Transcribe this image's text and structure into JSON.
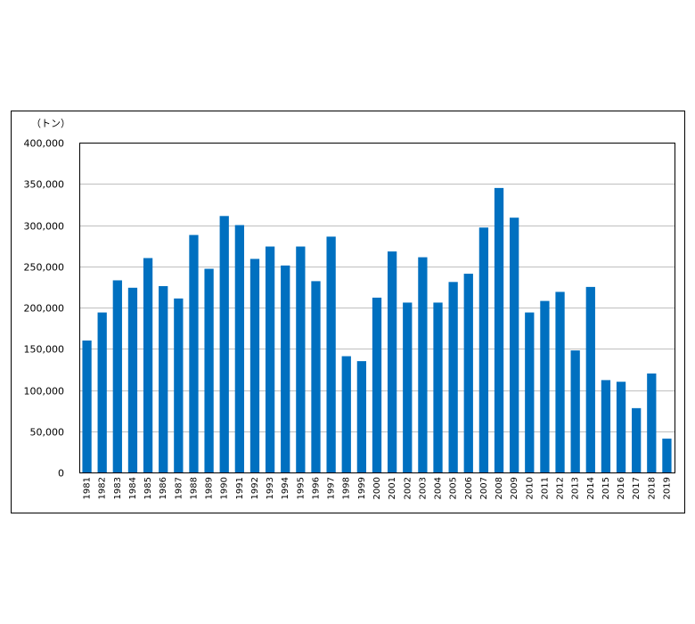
{
  "chart_data": {
    "type": "bar",
    "unit_label": "（トン）",
    "categories": [
      "1981",
      "1982",
      "1983",
      "1984",
      "1985",
      "1986",
      "1987",
      "1988",
      "1989",
      "1990",
      "1991",
      "1992",
      "1993",
      "1994",
      "1995",
      "1996",
      "1997",
      "1998",
      "1999",
      "2000",
      "2001",
      "2002",
      "2003",
      "2004",
      "2005",
      "2006",
      "2007",
      "2008",
      "2009",
      "2010",
      "2011",
      "2012",
      "2013",
      "2014",
      "2015",
      "2016",
      "2017",
      "2018",
      "2019"
    ],
    "values": [
      160000,
      194000,
      233000,
      224000,
      260000,
      226000,
      211000,
      288000,
      247000,
      311000,
      300000,
      259000,
      274000,
      251000,
      274000,
      232000,
      286000,
      141000,
      135000,
      212000,
      268000,
      206000,
      261000,
      206000,
      231000,
      241000,
      297000,
      345000,
      309000,
      194000,
      208000,
      219000,
      148000,
      225000,
      112000,
      110000,
      78000,
      120000,
      41000
    ],
    "ylim": [
      0,
      400000
    ],
    "yticks": [
      0,
      50000,
      100000,
      150000,
      200000,
      250000,
      300000,
      350000,
      400000
    ],
    "ytick_labels": [
      "0",
      "50,000",
      "100,000",
      "150,000",
      "200,000",
      "250,000",
      "300,000",
      "350,000",
      "400,000"
    ],
    "grid": true,
    "bar_color": "#0070C0",
    "grid_color": "#BFBFBF"
  }
}
